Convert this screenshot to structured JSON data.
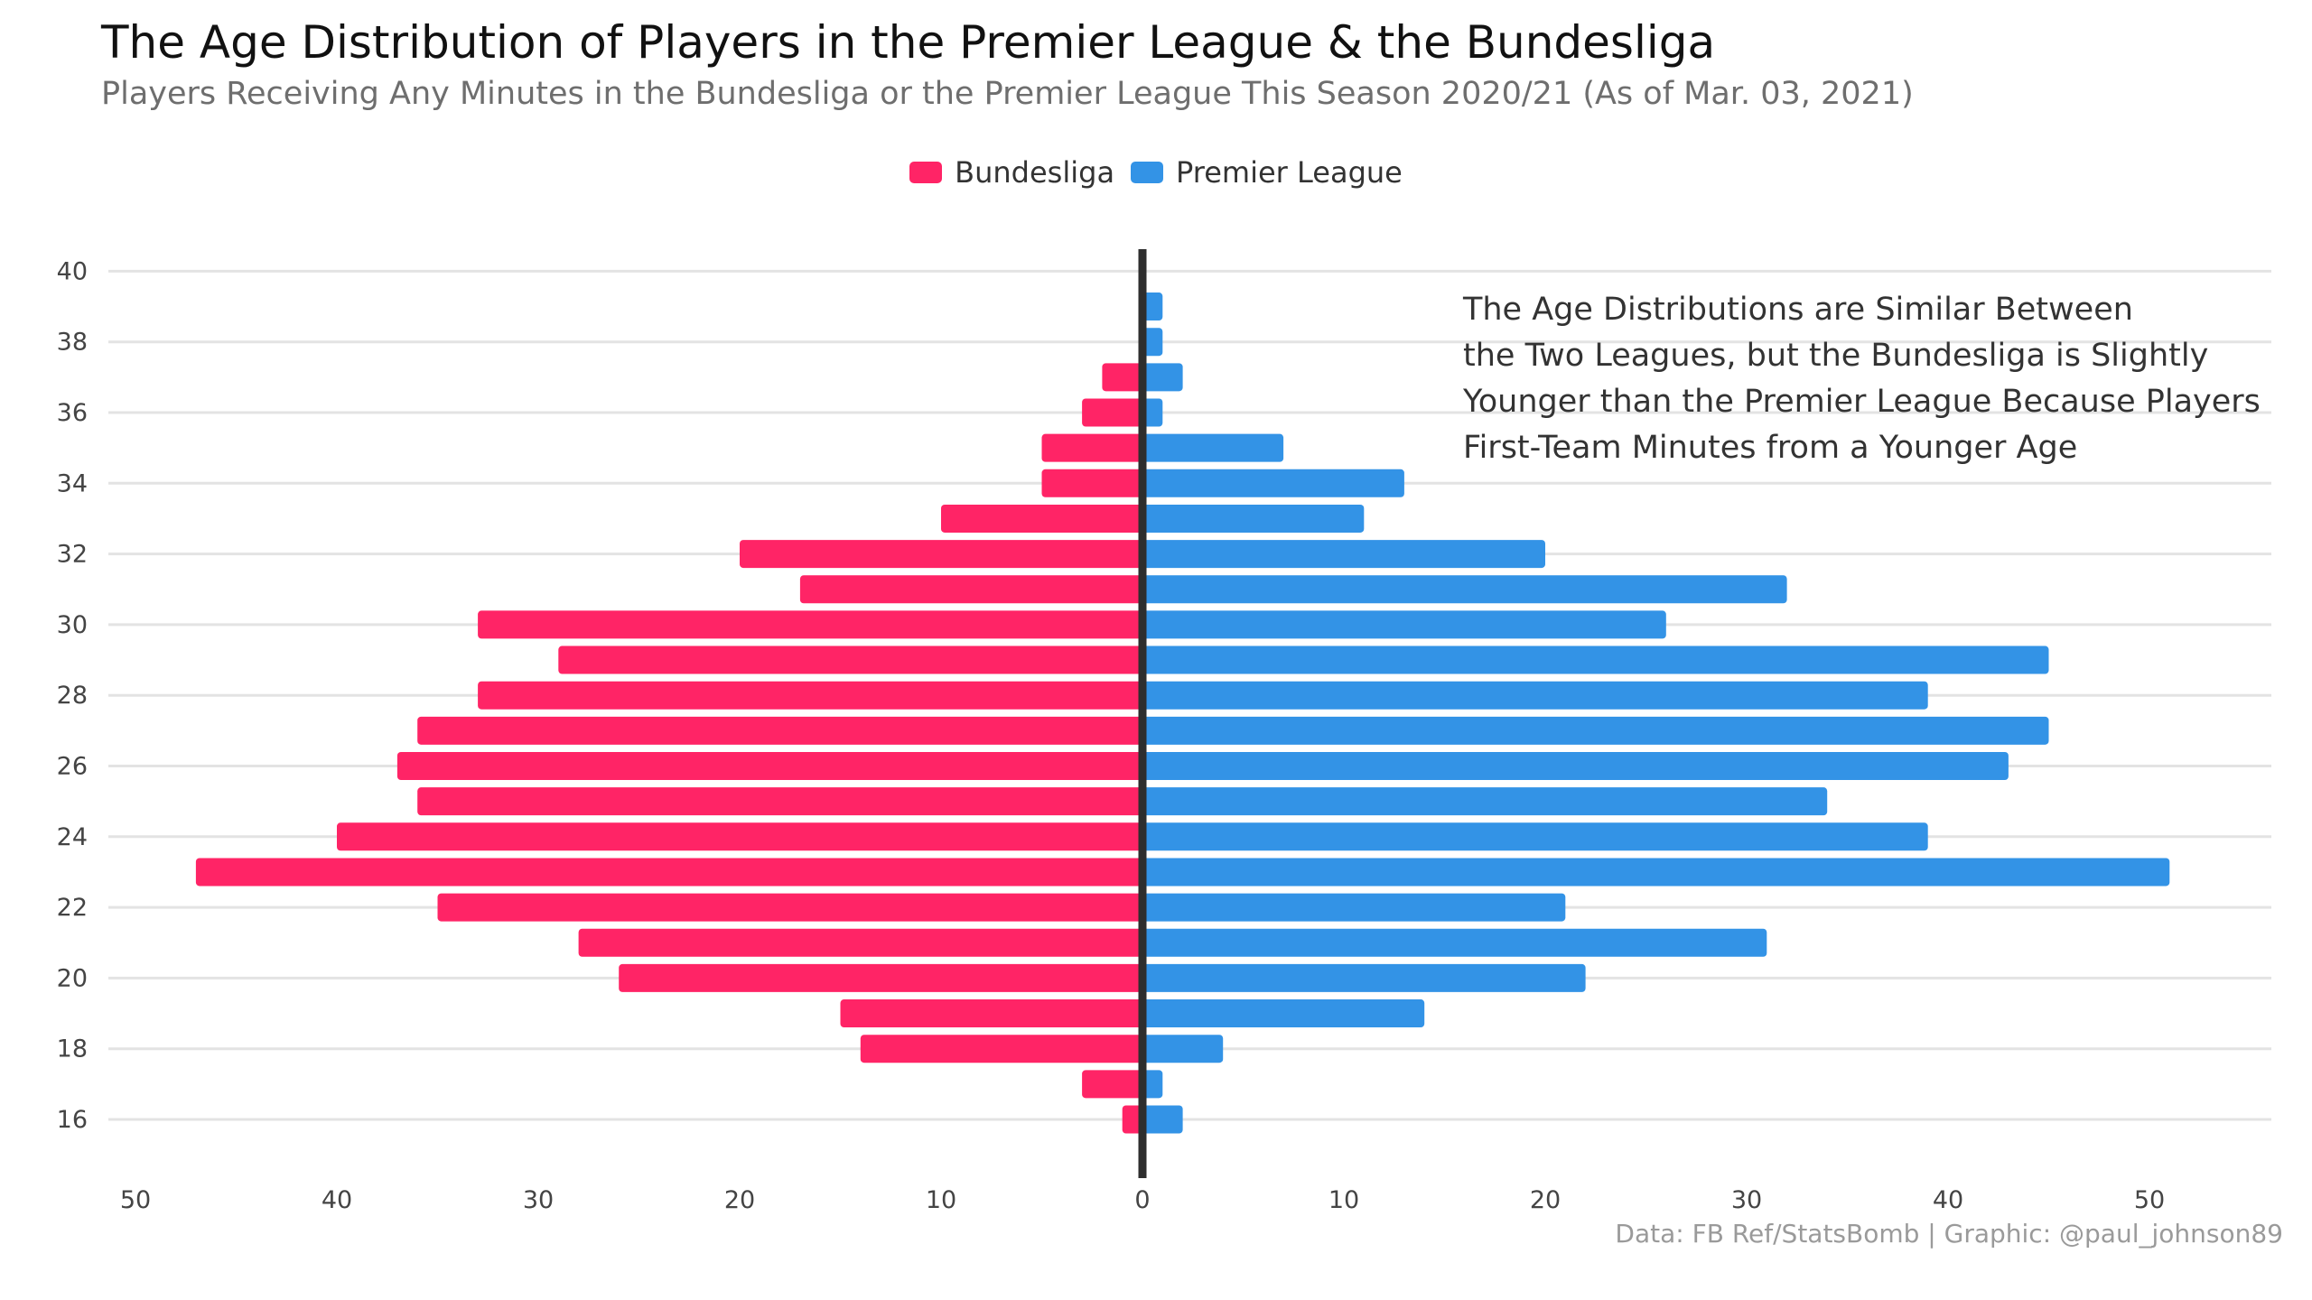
{
  "title": "The Age Distribution of Players in the Premier League & the Bundesliga",
  "subtitle": "Players Receiving Any Minutes in the Bundesliga or the Premier League This Season 2020/21 (As of Mar. 03, 2021)",
  "legend": [
    {
      "name": "Bundesliga",
      "color": "#ff2466"
    },
    {
      "name": "Premier League",
      "color": "#3393e6"
    }
  ],
  "annotation": [
    "The Age Distributions are Similar Between",
    "the Two Leagues, but the Bundesliga is Slightly",
    "Younger than the Premier League Because Players",
    "First-Team Minutes from a Younger Age"
  ],
  "caption": "Data: FB Ref/StatsBomb | Graphic: @paul_johnson89",
  "chart_data": {
    "type": "bar",
    "orientation": "horizontal-diverging",
    "categories": [
      16,
      17,
      18,
      19,
      20,
      21,
      22,
      23,
      24,
      25,
      26,
      27,
      28,
      29,
      30,
      31,
      32,
      33,
      34,
      35,
      36,
      37,
      38,
      39
    ],
    "series": [
      {
        "name": "Bundesliga",
        "color": "#ff2466",
        "direction": "left",
        "values": [
          1,
          3,
          14,
          15,
          26,
          28,
          35,
          47,
          40,
          36,
          37,
          36,
          33,
          29,
          33,
          17,
          20,
          10,
          5,
          5,
          3,
          2,
          0,
          0
        ]
      },
      {
        "name": "Premier League",
        "color": "#3393e6",
        "direction": "right",
        "values": [
          2,
          1,
          4,
          14,
          22,
          31,
          21,
          51,
          39,
          34,
          43,
          45,
          39,
          45,
          26,
          32,
          20,
          11,
          13,
          7,
          1,
          2,
          1,
          1
        ]
      }
    ],
    "y_ticks": [
      16,
      18,
      20,
      22,
      24,
      26,
      28,
      30,
      32,
      34,
      36,
      38,
      40
    ],
    "x_ticks": [
      50,
      40,
      30,
      20,
      10,
      0,
      10,
      20,
      30,
      40,
      50
    ],
    "xlim": [
      -53,
      56
    ],
    "ylim": [
      15,
      40.5
    ],
    "grid": "horizontal",
    "legend_position": "top-center"
  }
}
